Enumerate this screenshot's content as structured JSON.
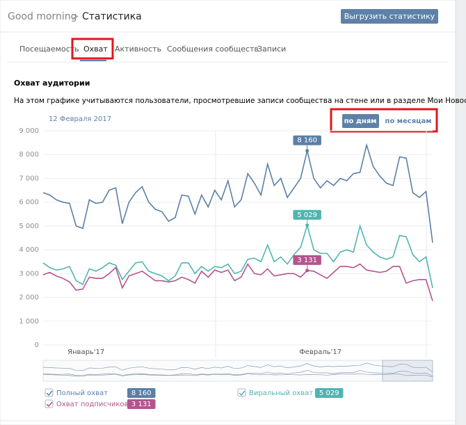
{
  "header": {
    "breadcrumb": "Good morning",
    "title": "Статистика",
    "button": "Выгрузить статистику"
  },
  "tabs": [
    "Посещаемость",
    "Охват",
    "Активность",
    "Сообщения сообществ",
    "Записи"
  ],
  "section": {
    "title": "Охват аудитории",
    "description": "На этом графике учитываются пользователи, просмотревшие записи сообщества на стене или в разделе Мои Новости."
  },
  "chart_data": {
    "type": "line",
    "date": "12 Февраля 2017",
    "toggle": [
      "по дням",
      "по месяцам"
    ],
    "categories": [
      null,
      null,
      null,
      null,
      null,
      null,
      null,
      null,
      null,
      null,
      null,
      null,
      null,
      null,
      null,
      null,
      null,
      null,
      null,
      null,
      null,
      null,
      null,
      null,
      null,
      null,
      null,
      null,
      null,
      null,
      null,
      null,
      null,
      null,
      null,
      null,
      null,
      null,
      null,
      null,
      null,
      null,
      null,
      null,
      null,
      null,
      null,
      null,
      null,
      null,
      null,
      null,
      null,
      null,
      null,
      null,
      null,
      null,
      null,
      null
    ],
    "xlim": [
      0,
      59
    ],
    "xticks": [
      {
        "value": 6.5,
        "label": "Январь'17"
      },
      {
        "value": 42,
        "label": "Февраль'17"
      }
    ],
    "ylim": [
      0,
      9000
    ],
    "yticks": [
      0,
      {
        "value": 1000,
        "label": "1 000"
      },
      {
        "value": 2000,
        "label": "2 000"
      },
      {
        "value": 3000,
        "label": "3 000"
      },
      {
        "value": 4000,
        "label": "4 000"
      },
      {
        "value": 5000,
        "label": "5 000"
      },
      {
        "value": 6000,
        "label": "6 000"
      },
      {
        "value": 7000,
        "label": "7 000"
      },
      {
        "value": 8000,
        "label": "8 000"
      },
      {
        "value": 9000,
        "label": "9 000"
      }
    ],
    "grid": true,
    "series": [
      {
        "name": "Полный охват",
        "color": "#5b7fa6",
        "values": [
          6400,
          6300,
          6100,
          6000,
          5950,
          5000,
          4900,
          6100,
          5950,
          6000,
          6500,
          6600,
          5100,
          6000,
          6400,
          6650,
          6000,
          5700,
          5600,
          5200,
          5350,
          6300,
          6250,
          5500,
          6300,
          5800,
          6500,
          6100,
          6900,
          5800,
          6100,
          7200,
          6800,
          6300,
          7600,
          6700,
          7000,
          6200,
          6600,
          7000,
          8160,
          7000,
          6600,
          6900,
          6700,
          7000,
          6900,
          7200,
          7250,
          8400,
          7500,
          7100,
          6800,
          6700,
          7900,
          7850,
          6400,
          6200,
          6450,
          4300
        ],
        "value_labels": [
          null,
          null,
          null,
          null,
          null,
          null,
          null,
          null,
          null,
          null,
          null,
          null,
          null,
          null,
          null,
          null,
          null,
          null,
          null,
          null,
          null,
          null,
          null,
          null,
          null,
          null,
          null,
          null,
          null,
          null,
          null,
          null,
          null,
          null,
          null,
          null,
          null,
          null,
          null,
          null,
          "8 160",
          null,
          null,
          null,
          null,
          null,
          null,
          null,
          null,
          null,
          null,
          null,
          null,
          null,
          null,
          null,
          null,
          null,
          null,
          null
        ]
      },
      {
        "name": "Виральный охват",
        "color": "#4fb5b1",
        "values": [
          3450,
          3250,
          3150,
          3200,
          3300,
          2700,
          2550,
          3200,
          3100,
          3250,
          3450,
          3350,
          2750,
          3100,
          3450,
          3500,
          3100,
          3000,
          2900,
          2700,
          2900,
          3450,
          3450,
          3000,
          3300,
          3100,
          3300,
          3250,
          3400,
          3000,
          3100,
          3600,
          3650,
          3500,
          4200,
          3500,
          3700,
          3400,
          3800,
          4100,
          5029,
          4000,
          3850,
          3850,
          3500,
          3900,
          4000,
          3900,
          5000,
          4200,
          3900,
          3700,
          3600,
          3700,
          4600,
          4550,
          3800,
          3500,
          3700,
          2400
        ],
        "value_labels": [
          null,
          null,
          null,
          null,
          null,
          null,
          null,
          null,
          null,
          null,
          null,
          null,
          null,
          null,
          null,
          null,
          null,
          null,
          null,
          null,
          null,
          null,
          null,
          null,
          null,
          null,
          null,
          null,
          null,
          null,
          null,
          null,
          null,
          null,
          null,
          null,
          null,
          null,
          null,
          null,
          "5 029",
          null,
          null,
          null,
          null,
          null,
          null,
          null,
          null,
          null,
          null,
          null,
          null,
          null,
          null,
          null,
          null,
          null,
          null,
          null
        ]
      },
      {
        "name": "Охват подписчиков",
        "color": "#b3548f",
        "values": [
          2950,
          3050,
          2900,
          2800,
          2650,
          2300,
          2350,
          2850,
          2800,
          2800,
          3000,
          3250,
          2400,
          2900,
          3000,
          3100,
          2900,
          2700,
          2700,
          2650,
          2700,
          2850,
          2750,
          2600,
          3100,
          2850,
          3150,
          3050,
          3150,
          2700,
          2850,
          3400,
          3000,
          2950,
          3200,
          2900,
          2950,
          3000,
          3000,
          2850,
          3131,
          3100,
          2950,
          2800,
          3050,
          3300,
          3300,
          3250,
          3400,
          3150,
          3100,
          3050,
          3100,
          3300,
          3300,
          2600,
          2700,
          2750,
          2750,
          1850
        ],
        "value_labels": [
          null,
          null,
          null,
          null,
          null,
          null,
          null,
          null,
          null,
          null,
          null,
          null,
          null,
          null,
          null,
          null,
          null,
          null,
          null,
          null,
          null,
          null,
          null,
          null,
          null,
          null,
          null,
          null,
          null,
          null,
          null,
          null,
          null,
          null,
          null,
          null,
          null,
          null,
          null,
          null,
          "3 131",
          null,
          null,
          null,
          null,
          null,
          null,
          null,
          null,
          null,
          null,
          null,
          null,
          null,
          null,
          null,
          null,
          null,
          null,
          null
        ]
      }
    ]
  }
}
